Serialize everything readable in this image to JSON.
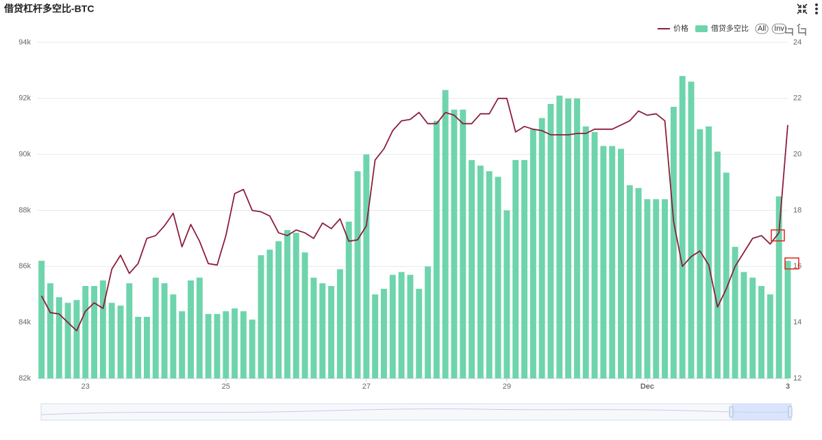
{
  "chart_data": {
    "type": "bar",
    "title": "借贷杠杆多空比-BTC",
    "x": [
      22.375,
      22.5,
      22.625,
      22.75,
      22.875,
      23,
      23.125,
      23.25,
      23.375,
      23.5,
      23.625,
      23.75,
      23.875,
      24,
      24.125,
      24.25,
      24.375,
      24.5,
      24.625,
      24.75,
      24.875,
      25,
      25.125,
      25.25,
      25.375,
      25.5,
      25.625,
      25.75,
      25.875,
      26,
      26.125,
      26.25,
      26.375,
      26.5,
      26.625,
      26.75,
      26.875,
      27,
      27.125,
      27.25,
      27.375,
      27.5,
      27.625,
      27.75,
      27.875,
      28,
      28.125,
      28.25,
      28.375,
      28.5,
      28.625,
      28.75,
      28.875,
      29,
      29.125,
      29.25,
      29.375,
      29.5,
      29.625,
      29.75,
      29.875,
      30,
      30.125,
      30.25,
      30.375,
      30.5,
      30.625,
      30.75,
      30.875,
      31,
      31.125,
      31.25,
      31.375,
      31.5,
      31.625,
      31.75,
      31.875,
      32,
      32.125,
      32.25,
      32.375,
      32.5,
      32.625,
      32.75,
      32.875,
      33
    ],
    "xlim": [
      22.32,
      33
    ],
    "xticks": [
      23,
      25,
      27,
      29,
      {
        "value": 31,
        "label": "Dec"
      },
      {
        "value": 33,
        "label": "3"
      }
    ],
    "ylim": [
      82000,
      94000
    ],
    "yticks": [
      {
        "value": 82000,
        "label": "82k"
      },
      {
        "value": 84000,
        "label": "84k"
      },
      {
        "value": 86000,
        "label": "86k"
      },
      {
        "value": 88000,
        "label": "88k"
      },
      {
        "value": 90000,
        "label": "90k"
      },
      {
        "value": 92000,
        "label": "92k"
      },
      {
        "value": 94000,
        "label": "94k"
      }
    ],
    "y2lim": [
      12,
      24
    ],
    "y2ticks": [
      12,
      14,
      16,
      18,
      20,
      22,
      24
    ],
    "grid": true,
    "legend_buttons": [
      "All",
      "Inv"
    ],
    "series": [
      {
        "name": "价格",
        "type": "line",
        "color": "#8c1c3a",
        "values": [
          84950,
          84350,
          84300,
          84000,
          83700,
          84400,
          84700,
          84500,
          85900,
          86400,
          85750,
          86100,
          87000,
          87100,
          87450,
          87900,
          86700,
          87500,
          86900,
          86100,
          86050,
          87100,
          88600,
          88750,
          88000,
          87950,
          87800,
          87200,
          87100,
          87300,
          87200,
          87000,
          87550,
          87350,
          87700,
          86900,
          86950,
          87450,
          89800,
          90200,
          90850,
          91200,
          91250,
          91500,
          91100,
          91100,
          91500,
          91400,
          91100,
          91100,
          91450,
          91450,
          92000,
          92000,
          90800,
          91000,
          90900,
          90850,
          90700,
          90700,
          90700,
          90750,
          90750,
          90900,
          90900,
          90900,
          91050,
          91200,
          91550,
          91400,
          91450,
          91200,
          87600,
          86000,
          86350,
          86550,
          86050,
          84550,
          85200,
          86000,
          86500,
          87000,
          87100,
          86800,
          87200,
          91050
        ]
      },
      {
        "name": "借贷多空比",
        "type": "bar",
        "axis": "y2",
        "color": "#6ed4ac",
        "values": [
          16.2,
          15.4,
          14.9,
          14.7,
          14.8,
          15.3,
          15.3,
          15.5,
          14.7,
          14.6,
          15.4,
          14.2,
          14.2,
          15.6,
          15.4,
          15.0,
          14.4,
          15.5,
          15.6,
          14.3,
          14.3,
          14.4,
          14.5,
          14.4,
          14.1,
          16.4,
          16.6,
          16.9,
          17.3,
          17.2,
          16.5,
          15.6,
          15.4,
          15.3,
          15.9,
          17.6,
          19.4,
          20.0,
          15.0,
          15.2,
          15.7,
          15.8,
          15.7,
          15.2,
          16.0,
          21.2,
          22.3,
          21.6,
          21.6,
          19.8,
          19.6,
          19.4,
          19.2,
          18.0,
          19.8,
          19.8,
          20.9,
          21.3,
          21.8,
          22.1,
          22.0,
          22.0,
          21.0,
          20.8,
          20.3,
          20.3,
          20.2,
          18.9,
          18.8,
          18.4,
          18.4,
          18.4,
          21.7,
          22.8,
          22.6,
          20.9,
          21.0,
          20.1,
          19.35,
          16.7,
          15.8,
          15.6,
          15.3,
          15.0,
          18.5,
          16.2
        ]
      }
    ]
  }
}
